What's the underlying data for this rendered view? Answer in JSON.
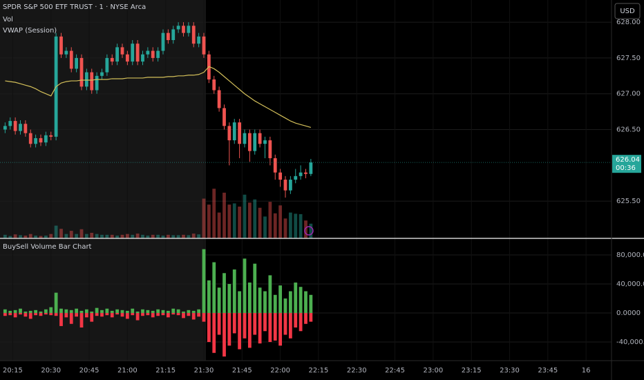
{
  "header": {
    "symbol": "SPDR S&P 500 ETF TRUST · 1 · NYSE Arca",
    "volume_label": "Vol",
    "vwap_label": "VWAP (Session)",
    "currency": "USD"
  },
  "chart_data": [
    {
      "type": "candlestick",
      "x": [
        "20:12",
        "20:14",
        "20:16",
        "20:18",
        "20:20",
        "20:22",
        "20:24",
        "20:26",
        "20:28",
        "20:30",
        "20:32",
        "20:34",
        "20:36",
        "20:38",
        "20:40",
        "20:42",
        "20:44",
        "20:46",
        "20:48",
        "20:50",
        "20:52",
        "20:54",
        "20:56",
        "20:58",
        "21:00",
        "21:02",
        "21:04",
        "21:06",
        "21:08",
        "21:10",
        "21:12",
        "21:14",
        "21:16",
        "21:18",
        "21:20",
        "21:22",
        "21:24",
        "21:26",
        "21:28",
        "21:30",
        "21:32",
        "21:34",
        "21:36",
        "21:38",
        "21:40",
        "21:42",
        "21:44",
        "21:46",
        "21:48",
        "21:50",
        "21:52",
        "21:54",
        "21:56",
        "21:58",
        "22:00",
        "22:02",
        "22:04",
        "22:06",
        "22:08",
        "22:10",
        "22:12"
      ],
      "open": [
        626.5,
        626.55,
        626.62,
        626.48,
        626.58,
        626.45,
        626.3,
        626.38,
        626.32,
        626.42,
        626.4,
        627.8,
        627.55,
        627.6,
        627.35,
        627.5,
        627.1,
        627.3,
        627.05,
        627.25,
        627.3,
        627.5,
        627.45,
        627.65,
        627.55,
        627.45,
        627.7,
        627.45,
        627.55,
        627.6,
        627.5,
        627.6,
        627.85,
        627.75,
        627.9,
        627.95,
        627.85,
        627.95,
        627.7,
        627.8,
        627.55,
        627.2,
        627.05,
        626.8,
        626.55,
        626.35,
        626.6,
        626.3,
        626.45,
        626.2,
        626.45,
        626.3,
        626.35,
        626.1,
        625.9,
        625.8,
        625.65,
        625.8,
        625.85,
        625.9,
        625.88
      ],
      "high": [
        626.6,
        626.67,
        626.67,
        626.63,
        626.63,
        626.5,
        626.43,
        626.43,
        626.47,
        626.47,
        627.85,
        627.85,
        627.65,
        627.65,
        627.55,
        627.55,
        627.35,
        627.35,
        627.3,
        627.35,
        627.55,
        627.55,
        627.7,
        627.7,
        627.6,
        627.75,
        627.75,
        627.6,
        627.65,
        627.65,
        627.65,
        627.9,
        627.9,
        627.95,
        628.0,
        628.0,
        628.0,
        628.0,
        627.85,
        627.85,
        627.6,
        627.25,
        627.1,
        626.85,
        626.6,
        626.65,
        626.65,
        626.5,
        626.5,
        626.5,
        626.5,
        626.4,
        626.4,
        626.15,
        625.95,
        625.85,
        625.85,
        625.95,
        626.0,
        625.95,
        626.09
      ],
      "low": [
        626.45,
        626.5,
        626.43,
        626.43,
        626.4,
        626.25,
        626.25,
        626.27,
        626.27,
        626.35,
        626.35,
        627.5,
        627.5,
        627.3,
        627.3,
        627.05,
        627.05,
        627.0,
        627.0,
        627.2,
        627.25,
        627.4,
        627.4,
        627.5,
        627.4,
        627.4,
        627.4,
        627.4,
        627.5,
        627.45,
        627.45,
        627.55,
        627.7,
        627.7,
        627.85,
        627.8,
        627.8,
        627.65,
        627.65,
        627.5,
        627.15,
        627.0,
        626.75,
        626.5,
        626.0,
        626.3,
        626.1,
        626.25,
        626.05,
        626.15,
        626.25,
        626.1,
        626.0,
        625.8,
        625.7,
        625.55,
        625.6,
        625.75,
        625.8,
        625.82,
        625.85
      ],
      "close": [
        626.55,
        626.62,
        626.48,
        626.58,
        626.45,
        626.3,
        626.38,
        626.32,
        626.42,
        626.4,
        627.8,
        627.55,
        627.6,
        627.35,
        627.5,
        627.1,
        627.3,
        627.05,
        627.25,
        627.3,
        627.5,
        627.45,
        627.65,
        627.55,
        627.45,
        627.7,
        627.45,
        627.55,
        627.6,
        627.5,
        627.6,
        627.85,
        627.75,
        627.9,
        627.95,
        627.85,
        627.95,
        627.7,
        627.8,
        627.55,
        627.2,
        627.05,
        626.8,
        626.55,
        626.35,
        626.6,
        626.3,
        626.45,
        626.2,
        626.45,
        626.3,
        626.35,
        626.1,
        625.9,
        625.8,
        625.65,
        625.8,
        625.85,
        625.9,
        625.88,
        626.04
      ],
      "vwap": [
        627.18,
        627.17,
        627.16,
        627.14,
        627.12,
        627.1,
        627.07,
        627.03,
        627.0,
        626.97,
        627.1,
        627.15,
        627.17,
        627.18,
        627.18,
        627.19,
        627.19,
        627.19,
        627.2,
        627.2,
        627.2,
        627.21,
        627.21,
        627.21,
        627.22,
        627.22,
        627.22,
        627.22,
        627.23,
        627.23,
        627.23,
        627.23,
        627.24,
        627.24,
        627.25,
        627.25,
        627.26,
        627.26,
        627.27,
        627.3,
        627.38,
        627.35,
        627.3,
        627.24,
        627.18,
        627.12,
        627.06,
        627.0,
        626.95,
        626.9,
        626.86,
        626.82,
        626.78,
        626.74,
        626.7,
        626.66,
        626.62,
        626.59,
        626.57,
        626.55,
        626.53
      ],
      "countdown": "00:36",
      "up_color": "#26a69a",
      "down_color": "#ef5350",
      "vwap_color": "#d4c05a",
      "xlim": [
        "20:10",
        "00:10"
      ],
      "xticks": [
        "20:15",
        "20:30",
        "20:45",
        "21:00",
        "21:15",
        "21:30",
        "21:45",
        "22:00",
        "22:15",
        "22:30",
        "22:45",
        "23:00",
        "23:15",
        "23:30",
        "23:45",
        "16"
      ],
      "ylim": [
        624.98,
        628.31
      ],
      "yticks": [
        {
          "value": 625.5,
          "label": "625.50"
        },
        {
          "value": 626.5,
          "label": "626.50"
        },
        {
          "value": 627,
          "label": "627.00"
        },
        {
          "value": 627.5,
          "label": "627.50"
        },
        {
          "value": 628,
          "label": "628.00"
        }
      ],
      "volume_ylim": [
        0,
        600000
      ],
      "grid": true
    },
    {
      "type": "bar",
      "title": "BuySell Volume Bar Chart",
      "buy": [
        5000,
        3000,
        4000,
        6000,
        2000,
        3000,
        4000,
        2000,
        5000,
        8000,
        28000,
        6000,
        5000,
        4000,
        6000,
        3000,
        5000,
        2000,
        7000,
        4000,
        6000,
        3000,
        5000,
        4000,
        3000,
        6000,
        2000,
        5000,
        4000,
        3000,
        5000,
        4000,
        3000,
        6000,
        5000,
        2000,
        4000,
        3000,
        5000,
        88000,
        45000,
        70000,
        35000,
        55000,
        40000,
        60000,
        30000,
        75000,
        42000,
        68000,
        35000,
        30000,
        52000,
        25000,
        38000,
        20000,
        30000,
        42000,
        36000,
        30000,
        25000
      ],
      "sell": [
        -4000,
        -3000,
        -6000,
        -2000,
        -5000,
        -8000,
        -3000,
        -4000,
        -2000,
        -3000,
        -4000,
        -18000,
        -6000,
        -15000,
        -5000,
        -20000,
        -6000,
        -12000,
        -4000,
        -5000,
        -3000,
        -6000,
        -2000,
        -5000,
        -8000,
        -3000,
        -10000,
        -4000,
        -3000,
        -6000,
        -4000,
        -3000,
        -6000,
        -2000,
        -3000,
        -7000,
        -4000,
        -9000,
        -5000,
        -12000,
        -40000,
        -55000,
        -30000,
        -60000,
        -45000,
        -28000,
        -50000,
        -35000,
        -48000,
        -30000,
        -42000,
        -25000,
        -40000,
        -38000,
        -45000,
        -30000,
        -35000,
        -20000,
        -25000,
        -15000,
        -12000
      ],
      "buy_color": "#4caf50",
      "sell_color": "#f23645",
      "ylim": [
        -65700,
        102900
      ],
      "yticks": [
        {
          "value": -40000,
          "label": "-40,000.00"
        },
        {
          "value": 0,
          "label": "0.0000"
        },
        {
          "value": 40000,
          "label": "40,000.00"
        },
        {
          "value": 80000,
          "label": "80,000.00"
        }
      ],
      "grid": true
    }
  ]
}
